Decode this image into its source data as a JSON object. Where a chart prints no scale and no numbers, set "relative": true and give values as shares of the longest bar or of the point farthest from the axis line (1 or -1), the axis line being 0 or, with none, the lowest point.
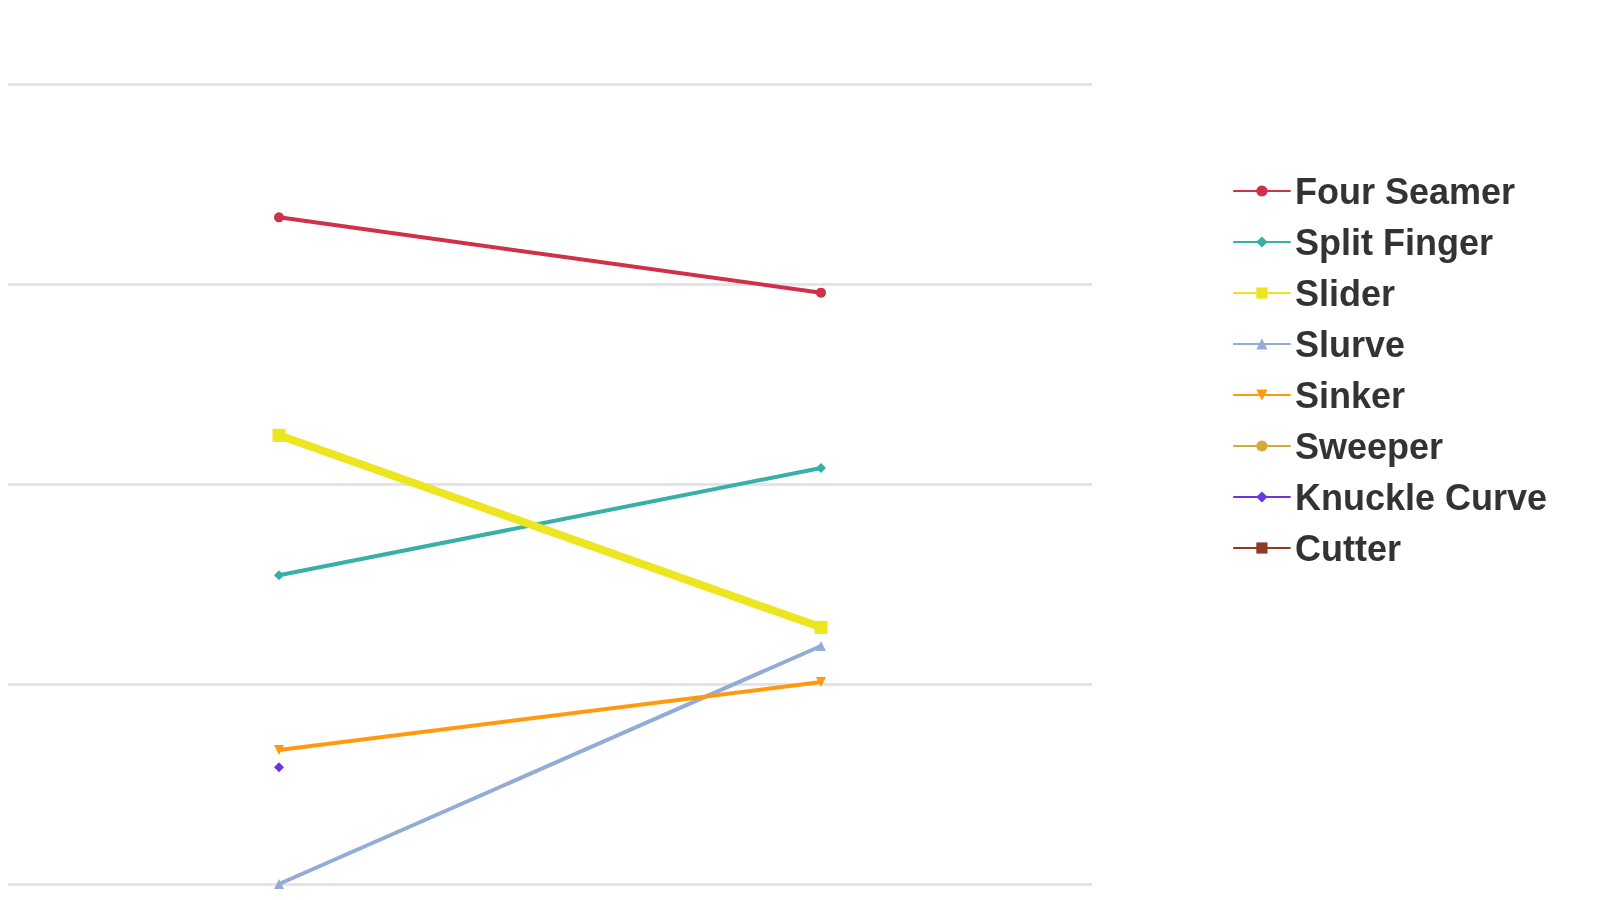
{
  "chart_data": {
    "type": "line",
    "relative": true,
    "categories": [
      null,
      null
    ],
    "grid": "y",
    "legend": "right",
    "series": [
      {
        "name": "Four Seamer",
        "color": "#d0304a",
        "marker": "circle",
        "values": [
          1.0,
          0.887
        ]
      },
      {
        "name": "Split Finger",
        "color": "#36b0a8",
        "marker": "diamond",
        "values": [
          0.463,
          0.624
        ]
      },
      {
        "name": "Slider",
        "color": "#ece520",
        "marker": "square",
        "values": [
          0.673,
          0.385
        ]
      },
      {
        "name": "Slurve",
        "color": "#93acd6",
        "marker": "triangle",
        "values": [
          0,
          0.357
        ]
      },
      {
        "name": "Sinker",
        "color": "#ff9a10",
        "marker": "triangle-down",
        "values": [
          0.201,
          0.303
        ]
      },
      {
        "name": "Sweeper",
        "color": "#d4aa3c",
        "marker": "circle",
        "values": [
          null,
          null
        ]
      },
      {
        "name": "Knuckle Curve",
        "color": "#6a35e0",
        "marker": "diamond",
        "values": [
          0.175,
          null
        ]
      },
      {
        "name": "Cutter",
        "color": "#8e3a26",
        "marker": "square",
        "values": [
          null,
          null
        ]
      }
    ]
  }
}
